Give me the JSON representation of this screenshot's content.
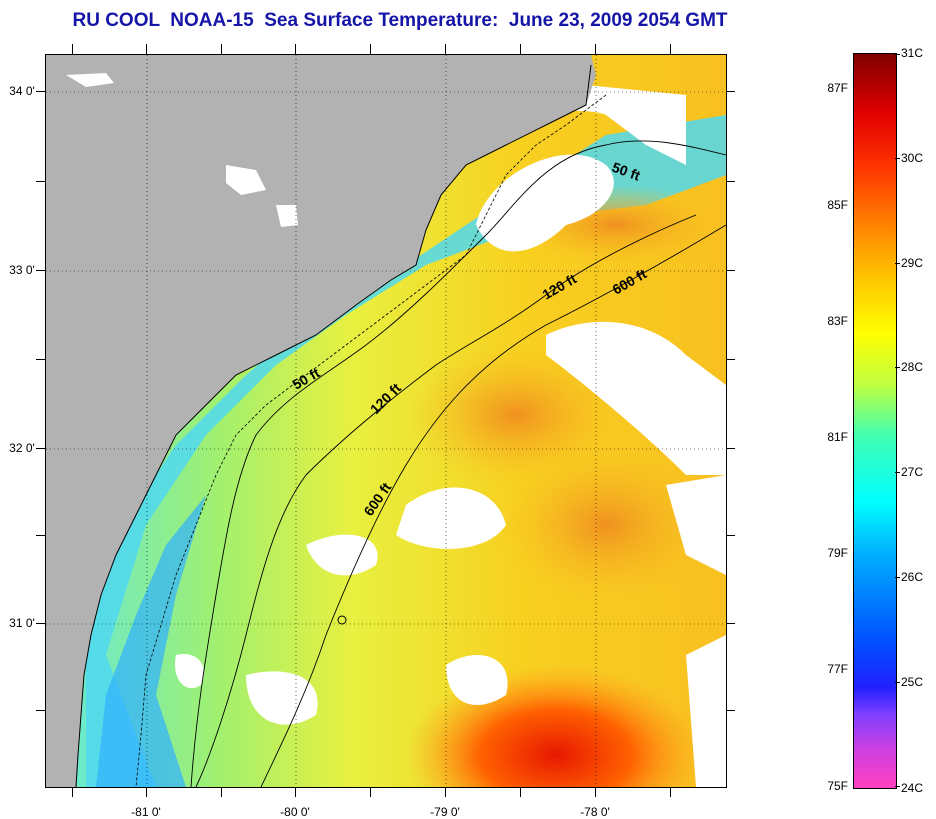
{
  "title": "RU COOL  NOAA-15  Sea Surface Temperature:  June 23, 2009 2054 GMT",
  "map": {
    "latitude_labels": [
      "34 0'",
      "33 0'",
      "32 0'",
      "31 0'"
    ],
    "longitude_labels": [
      "-81 0'",
      "-80 0'",
      "-79 0'",
      "-78 0'"
    ],
    "isobath_labels": [
      "50 ft",
      "120 ft",
      "600 ft",
      "50 ft",
      "120 ft",
      "600 ft"
    ],
    "land_color": "#b2b2b2",
    "cloud_color": "#ffffff",
    "gridline_style": "dotted"
  },
  "colorbar": {
    "fahrenheit_labels": [
      "87F",
      "85F",
      "83F",
      "81F",
      "79F",
      "77F",
      "75F"
    ],
    "celsius_labels": [
      "31C",
      "30C",
      "29C",
      "28C",
      "27C",
      "26C",
      "25C",
      "24C"
    ],
    "colors": [
      "#ff40c0",
      "#2020ff",
      "#00ffff",
      "#ffff00",
      "#ff8000",
      "#800000"
    ]
  }
}
